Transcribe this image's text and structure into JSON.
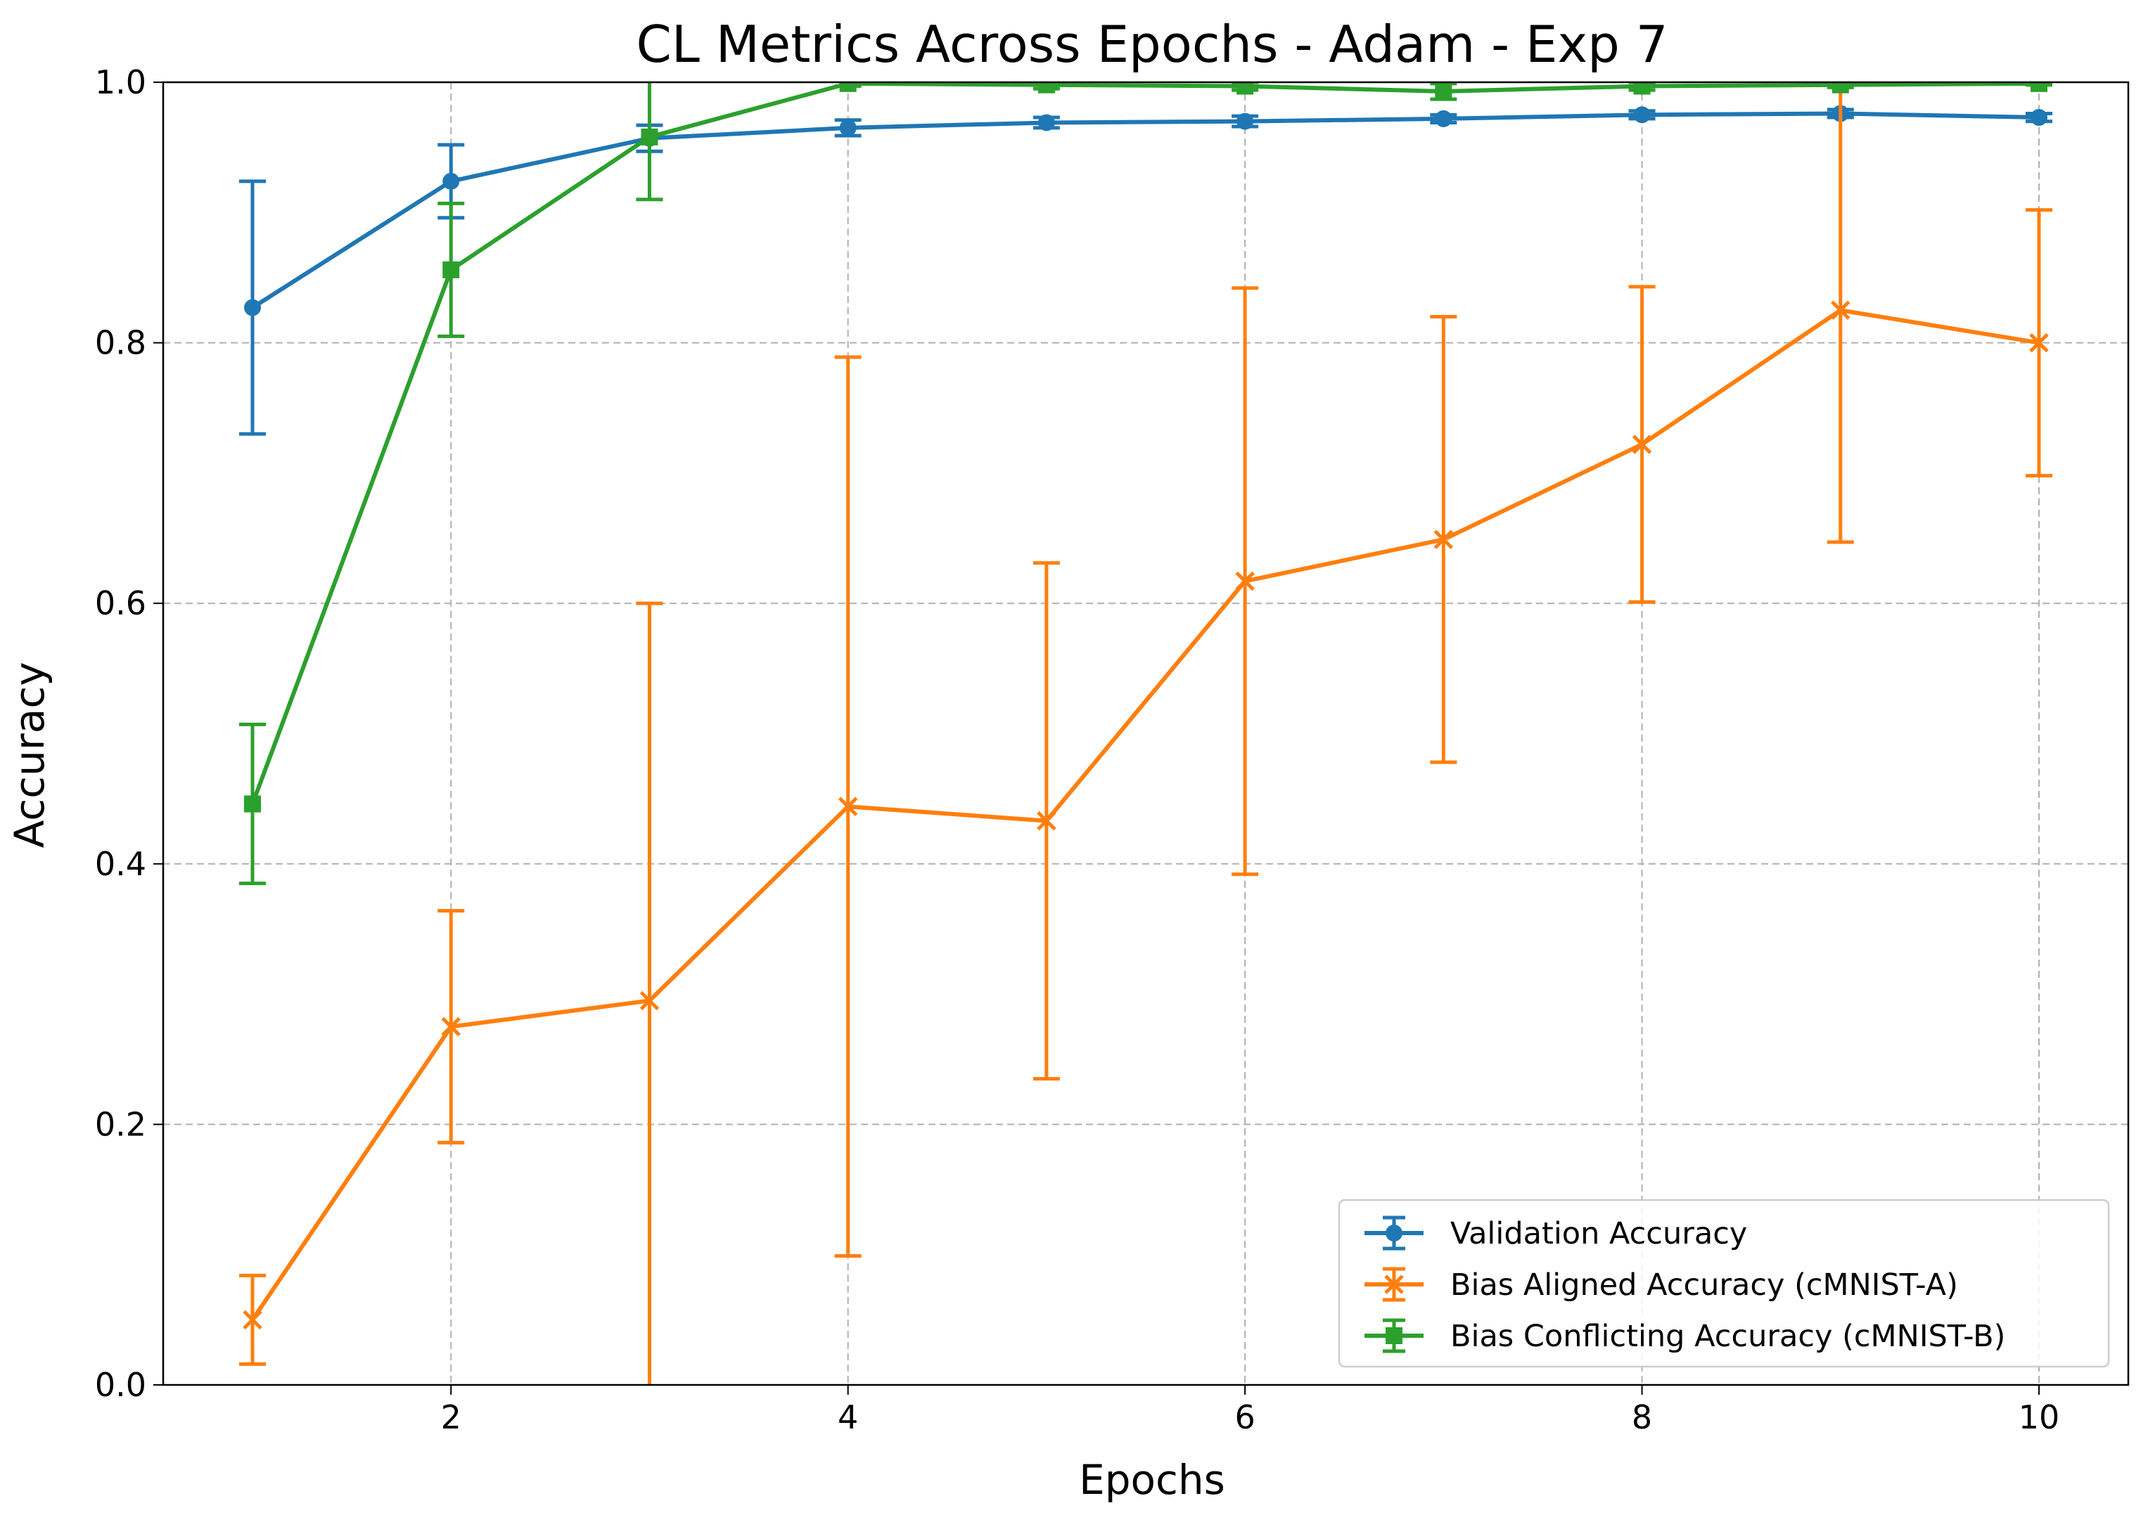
{
  "chart_data": {
    "type": "line",
    "title": "CL Metrics Across Epochs - Adam - Exp 7",
    "xlabel": "Epochs",
    "ylabel": "Accuracy",
    "xlim": [
      0.55,
      10.45
    ],
    "ylim": [
      0.0,
      1.0
    ],
    "xticks": [
      2,
      4,
      6,
      8,
      10
    ],
    "yticks": [
      0.0,
      0.2,
      0.4,
      0.6,
      0.8,
      1.0
    ],
    "ytick_labels": [
      "0.0",
      "0.2",
      "0.4",
      "0.6",
      "0.8",
      "1.0"
    ],
    "grid": true,
    "legend_position": "lower-right",
    "x": [
      1,
      2,
      3,
      4,
      5,
      6,
      7,
      8,
      9,
      10
    ],
    "series": [
      {
        "name": "Validation Accuracy",
        "color": "#1f77b4",
        "marker": "circle",
        "values": [
          0.827,
          0.924,
          0.957,
          0.965,
          0.969,
          0.97,
          0.972,
          0.975,
          0.976,
          0.973
        ],
        "err": [
          0.097,
          0.028,
          0.01,
          0.006,
          0.004,
          0.004,
          0.003,
          0.003,
          0.003,
          0.003
        ]
      },
      {
        "name": "Bias Aligned Accuracy (cMNIST-A)",
        "color": "#ff7f0e",
        "marker": "x",
        "values": [
          0.05,
          0.275,
          0.295,
          0.444,
          0.433,
          0.617,
          0.649,
          0.722,
          0.825,
          0.8
        ],
        "err": [
          0.034,
          0.089,
          0.305,
          0.345,
          0.198,
          0.225,
          0.171,
          0.121,
          0.178,
          0.102
        ]
      },
      {
        "name": "Bias Conflicting Accuracy (cMNIST-B)",
        "color": "#2ca02c",
        "marker": "square",
        "values": [
          0.446,
          0.856,
          0.958,
          0.999,
          0.998,
          0.997,
          0.993,
          0.997,
          0.998,
          0.999
        ],
        "err": [
          0.061,
          0.051,
          0.048,
          0.002,
          0.003,
          0.003,
          0.006,
          0.003,
          0.002,
          0.001
        ]
      }
    ]
  }
}
